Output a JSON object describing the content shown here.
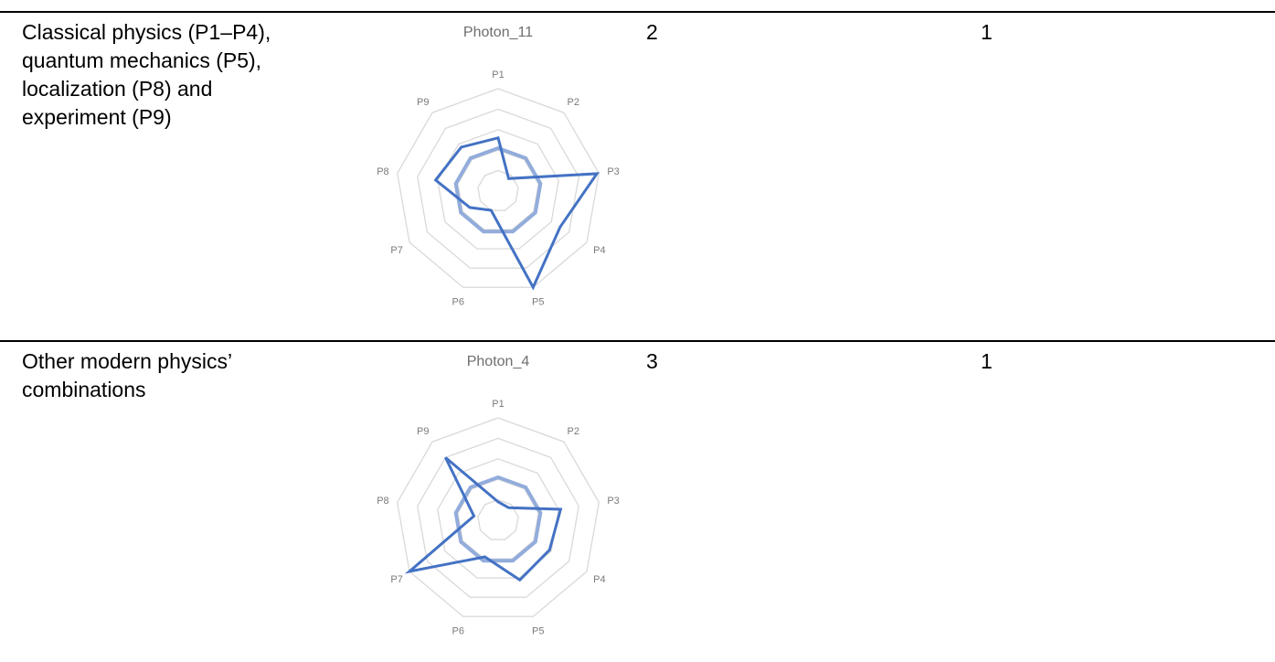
{
  "rows": [
    {
      "description": "Classical physics (P1–P4), quantum mechanics (P5), localization (P8) and experiment (P9)",
      "col3": "2",
      "col4": "1"
    },
    {
      "description": "Other modern physics’ combinations",
      "col3": "3",
      "col4": "1"
    }
  ],
  "chart_data": [
    {
      "type": "radar",
      "title": "Photon_11",
      "categories": [
        "P1",
        "P2",
        "P3",
        "P4",
        "P5",
        "P6",
        "P7",
        "P8",
        "P9"
      ],
      "rlim": [
        0,
        5
      ],
      "grid": true,
      "series": [
        {
          "color": "#4472C4",
          "values": [
            2.6,
            0.8,
            4.9,
            3.5,
            5.0,
            1.0,
            1.6,
            3.1,
            2.8
          ]
        },
        {
          "color": "#92ACDB",
          "values": [
            2.1,
            2.1,
            2.1,
            2.1,
            2.1,
            2.1,
            2.1,
            2.1,
            2.1
          ]
        }
      ]
    },
    {
      "type": "radar",
      "title": "Photon_4",
      "categories": [
        "P1",
        "P2",
        "P3",
        "P4",
        "P5",
        "P6",
        "P7",
        "P8",
        "P9"
      ],
      "rlim": [
        0,
        5
      ],
      "grid": true,
      "series": [
        {
          "color": "#4472C4",
          "values": [
            0.9,
            0.8,
            3.1,
            2.9,
            3.1,
            1.9,
            5.0,
            1.2,
            4.0
          ]
        },
        {
          "color": "#92ACDB",
          "values": [
            2.1,
            2.1,
            2.1,
            2.1,
            2.1,
            2.1,
            2.1,
            2.1,
            2.1
          ]
        }
      ]
    }
  ]
}
